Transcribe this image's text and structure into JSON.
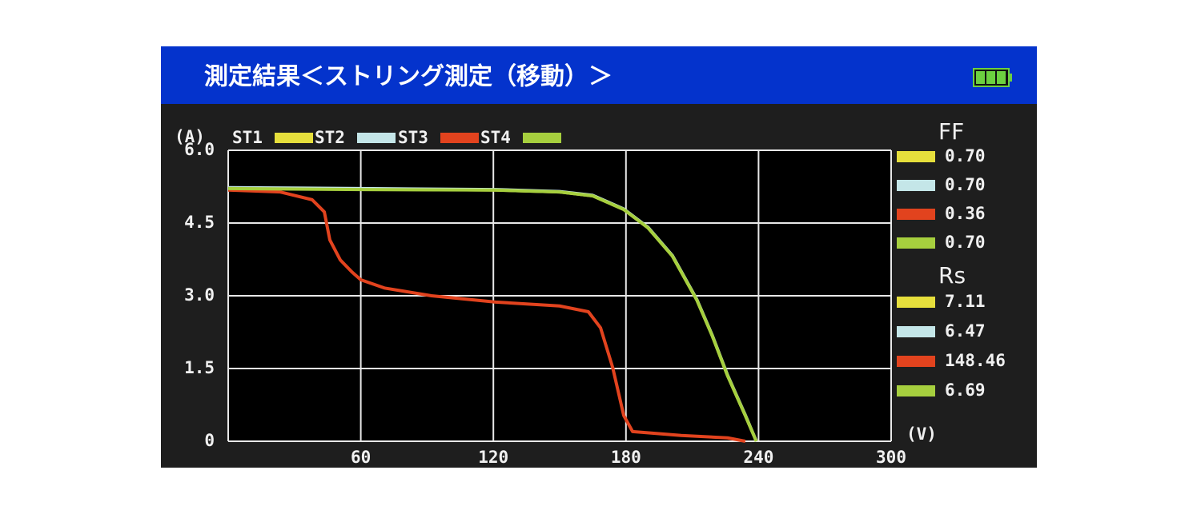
{
  "header": {
    "title": "測定結果＜ストリング測定（移動）＞"
  },
  "chart_data": {
    "type": "line",
    "ylabel": "(A)",
    "xlabel": "(V)",
    "xlim": [
      0,
      300
    ],
    "xticks": [
      60,
      120,
      180,
      240,
      300
    ],
    "ylim": [
      0,
      6
    ],
    "yticks": [
      0,
      1.5,
      {
        "value": 3,
        "label": "3.0"
      },
      4.5,
      {
        "value": 6,
        "label": "6.0"
      }
    ],
    "grid": true,
    "series": [
      {
        "name": "ST1",
        "color": "#e6df3c",
        "x": [
          0,
          60,
          121,
          150,
          165,
          179,
          190,
          201,
          212,
          219,
          226,
          234,
          239
        ],
        "values": [
          5.22,
          5.2,
          5.18,
          5.14,
          5.06,
          4.78,
          4.4,
          3.82,
          2.92,
          2.18,
          1.35,
          0.53,
          0
        ]
      },
      {
        "name": "ST2",
        "color": "#c4e6e8",
        "x": [
          0,
          60,
          121,
          150,
          165,
          179,
          190,
          201,
          212,
          219,
          226,
          234,
          239
        ],
        "values": [
          5.23,
          5.21,
          5.19,
          5.15,
          5.07,
          4.79,
          4.41,
          3.83,
          2.93,
          2.19,
          1.36,
          0.54,
          0
        ]
      },
      {
        "name": "ST3",
        "color": "#e2431e",
        "x": [
          0,
          23.6,
          38,
          43.5,
          46,
          50.7,
          56,
          60,
          70.7,
          92,
          121,
          150,
          163,
          168.5,
          174,
          179,
          183,
          205,
          226,
          234
        ],
        "values": [
          5.18,
          5.14,
          4.98,
          4.73,
          4.15,
          3.74,
          3.49,
          3.33,
          3.16,
          3.0,
          2.87,
          2.79,
          2.67,
          2.34,
          1.52,
          0.53,
          0.2,
          0.12,
          0.07,
          0
        ]
      },
      {
        "name": "ST4",
        "color": "#a6cf3e",
        "x": [
          0,
          60,
          121,
          150,
          165,
          179,
          190,
          201,
          212,
          219,
          226,
          234,
          239
        ],
        "values": [
          5.21,
          5.19,
          5.18,
          5.14,
          5.06,
          4.78,
          4.4,
          3.82,
          2.92,
          2.18,
          1.35,
          0.53,
          0
        ]
      }
    ],
    "ff": {
      "label": "FF",
      "values": [
        0.7,
        0.7,
        0.36,
        0.7
      ],
      "value_labels": [
        "0.70",
        "0.70",
        "0.36",
        "0.70"
      ]
    },
    "rs": {
      "label": "Rs",
      "values": [
        7.11,
        6.47,
        148.46,
        6.69
      ]
    }
  }
}
